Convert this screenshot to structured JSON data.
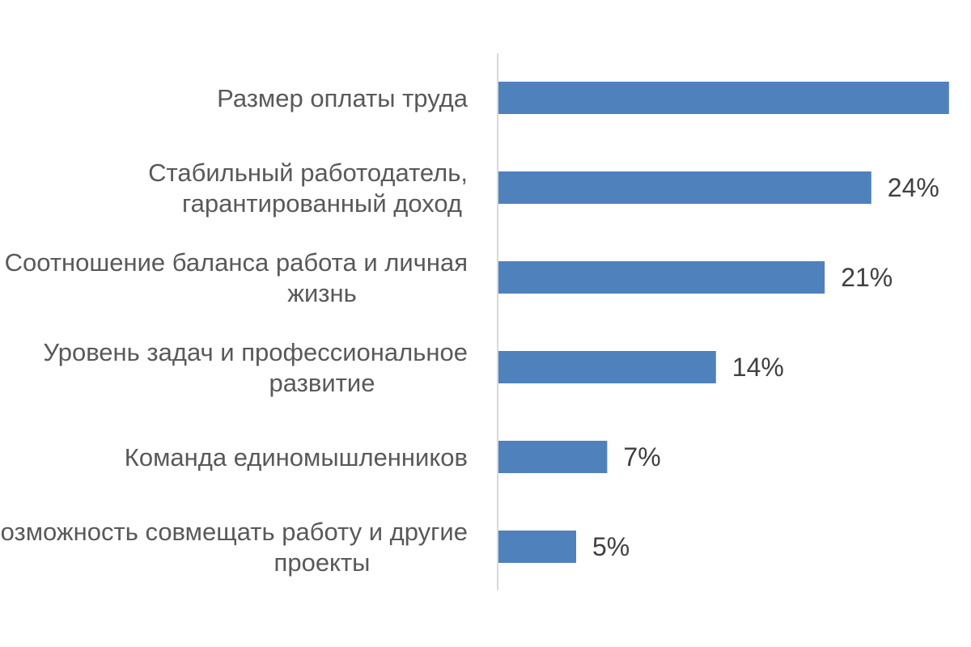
{
  "chart_data": {
    "type": "bar",
    "orientation": "horizontal",
    "title": "",
    "xlabel": "",
    "ylabel": "",
    "categories": [
      [
        "Размер оплаты труда"
      ],
      [
        "Стабильный работодатель,",
        "гарантированный доход"
      ],
      [
        "Соотношение баланса работа и личная",
        "жизнь"
      ],
      [
        "Уровень задач и профессиональное",
        "развитие"
      ],
      [
        "Команда единомышленников"
      ],
      [
        "Возможность совмещать работу и другие",
        "проекты"
      ]
    ],
    "values": [
      29,
      24,
      21,
      14,
      7,
      5
    ],
    "data_labels": [
      "",
      "24%",
      "21%",
      "14%",
      "7%",
      "5%"
    ],
    "xlim": [
      0,
      30
    ],
    "grid": false,
    "legend": "none",
    "bar_color": "#4f81bd",
    "axis_color": "#d9d9d9"
  }
}
